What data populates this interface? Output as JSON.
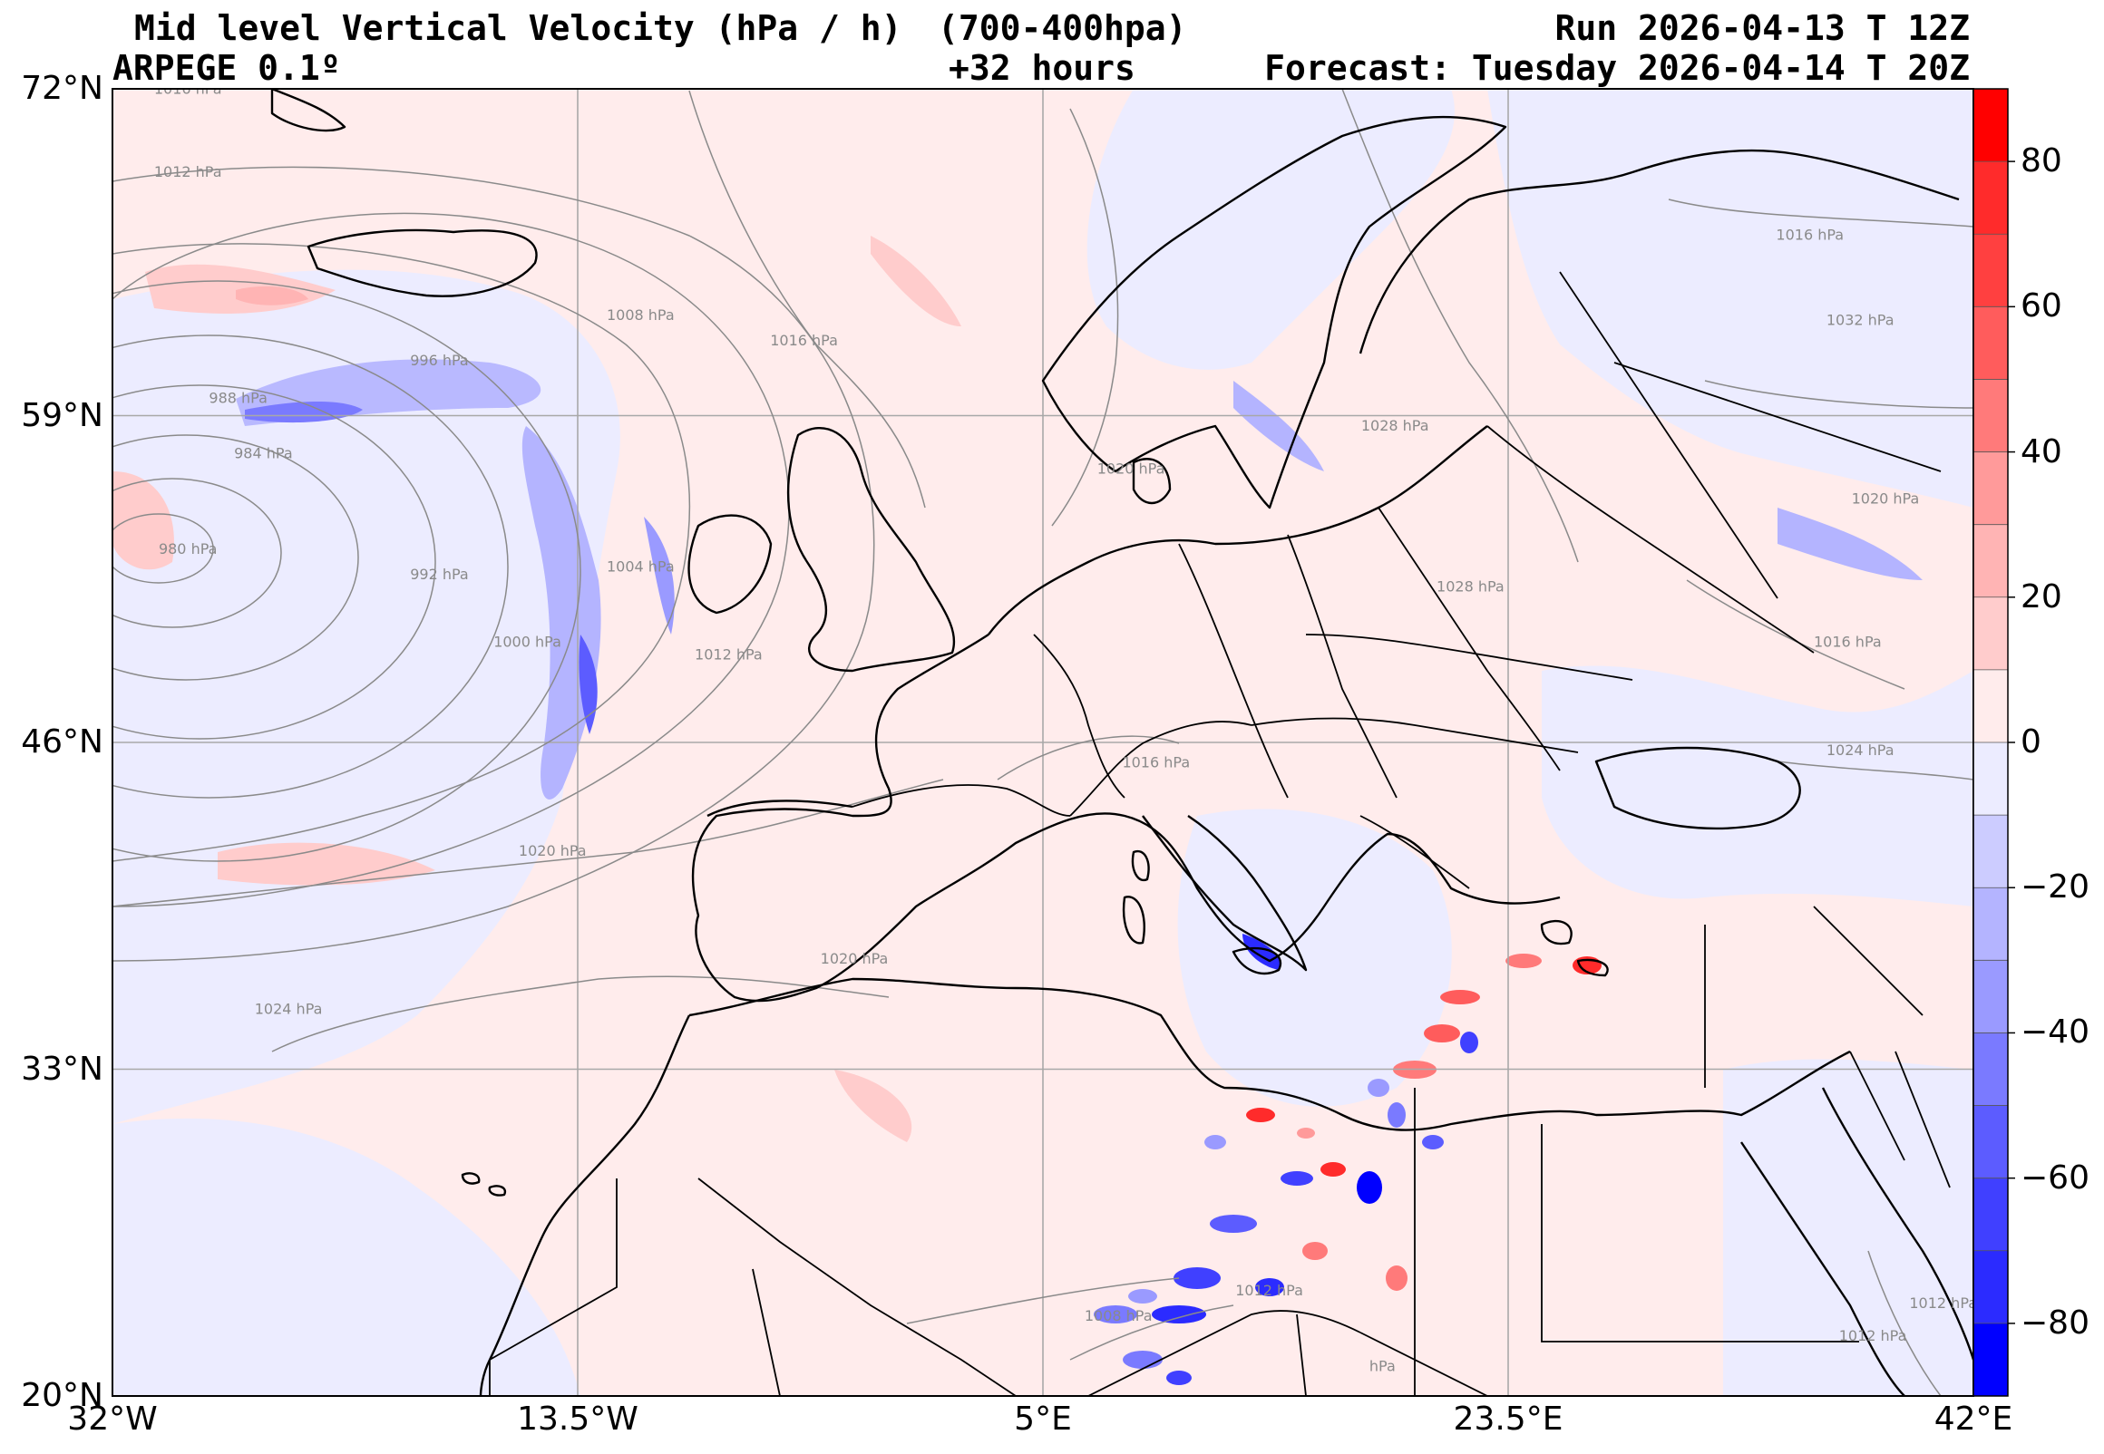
{
  "header": {
    "title": "Mid level Vertical Velocity (hPa / h)",
    "levels": "(700-400hpa)",
    "run": "Run 2026-04-13 T 12Z",
    "model": "ARPEGE 0.1º",
    "lead": "+32 hours",
    "forecast": "Forecast: Tuesday 2026-04-14 T 20Z"
  },
  "map": {
    "lon_range": [
      -32,
      42
    ],
    "lat_range": [
      20,
      72
    ],
    "lon_ticks": [
      {
        "value": -32,
        "label": "32°W"
      },
      {
        "value": -13.5,
        "label": "13.5°W"
      },
      {
        "value": 5,
        "label": "5°E"
      },
      {
        "value": 23.5,
        "label": "23.5°E"
      },
      {
        "value": 42,
        "label": "42°E"
      }
    ],
    "lat_ticks": [
      {
        "value": 72,
        "label": "72°N"
      },
      {
        "value": 59,
        "label": "59°N"
      },
      {
        "value": 46,
        "label": "46°N"
      },
      {
        "value": 33,
        "label": "33°N"
      },
      {
        "value": 20,
        "label": "20°N"
      }
    ],
    "grid": true,
    "pressure_labels": [
      {
        "text": "1016 hPa",
        "lon": -29,
        "lat": 71.8
      },
      {
        "text": "1012 hPa",
        "lon": -29,
        "lat": 68.5
      },
      {
        "text": "1008 hPa",
        "lon": -11,
        "lat": 62.8
      },
      {
        "text": "1016 hPa",
        "lon": -4.5,
        "lat": 61.8
      },
      {
        "text": "996 hPa",
        "lon": -19,
        "lat": 61.0
      },
      {
        "text": "988 hPa",
        "lon": -27,
        "lat": 59.5
      },
      {
        "text": "984 hPa",
        "lon": -26,
        "lat": 57.3
      },
      {
        "text": "980 hPa",
        "lon": -29,
        "lat": 53.5
      },
      {
        "text": "992 hPa",
        "lon": -19,
        "lat": 52.5
      },
      {
        "text": "1000 hPa",
        "lon": -15.5,
        "lat": 49.8
      },
      {
        "text": "1004 hPa",
        "lon": -11,
        "lat": 52.8
      },
      {
        "text": "1012 hPa",
        "lon": -7.5,
        "lat": 49.3
      },
      {
        "text": "1020 hPa",
        "lon": -14.5,
        "lat": 41.5
      },
      {
        "text": "1024 hPa",
        "lon": -25,
        "lat": 35.2
      },
      {
        "text": "1020 hPa",
        "lon": -2.5,
        "lat": 37.2
      },
      {
        "text": "1016 hPa",
        "lon": 9.5,
        "lat": 45.0
      },
      {
        "text": "1020 hPa",
        "lon": 8.5,
        "lat": 56.7
      },
      {
        "text": "1028 hPa",
        "lon": 19,
        "lat": 58.4
      },
      {
        "text": "1028 hPa",
        "lon": 22,
        "lat": 52.0
      },
      {
        "text": "1016 hPa",
        "lon": 35.5,
        "lat": 66.0
      },
      {
        "text": "1032 hPa",
        "lon": 37.5,
        "lat": 62.6
      },
      {
        "text": "1020 hPa",
        "lon": 38.5,
        "lat": 55.5
      },
      {
        "text": "1016 hPa",
        "lon": 37,
        "lat": 49.8
      },
      {
        "text": "1024 hPa",
        "lon": 37.5,
        "lat": 45.5
      },
      {
        "text": "1012 hPa",
        "lon": 14,
        "lat": 24.0
      },
      {
        "text": "1008 hPa",
        "lon": 8,
        "lat": 23.0
      },
      {
        "text": "1012 hPa",
        "lon": 38,
        "lat": 22.2
      },
      {
        "text": "1012 hPa",
        "lon": 40.8,
        "lat": 23.5
      },
      {
        "text": "hPa",
        "lon": 18.5,
        "lat": 21.0
      }
    ]
  },
  "colorbar": {
    "range": [
      -90,
      90
    ],
    "ticks": [
      {
        "value": 80,
        "label": "80"
      },
      {
        "value": 60,
        "label": "60"
      },
      {
        "value": 40,
        "label": "40"
      },
      {
        "value": 20,
        "label": "20"
      },
      {
        "value": 0,
        "label": "0"
      },
      {
        "value": -20,
        "label": "−20"
      },
      {
        "value": -40,
        "label": "−40"
      },
      {
        "value": -60,
        "label": "−60"
      },
      {
        "value": -80,
        "label": "−80"
      }
    ],
    "bins": [
      {
        "from": 80,
        "to": 90,
        "color": "#ff0000"
      },
      {
        "from": 70,
        "to": 80,
        "color": "#ff2b2b"
      },
      {
        "from": 60,
        "to": 70,
        "color": "#ff4040"
      },
      {
        "from": 50,
        "to": 60,
        "color": "#ff5c5c"
      },
      {
        "from": 40,
        "to": 50,
        "color": "#ff7a7a"
      },
      {
        "from": 30,
        "to": 40,
        "color": "#ff9a9a"
      },
      {
        "from": 20,
        "to": 30,
        "color": "#ffb4b4"
      },
      {
        "from": 10,
        "to": 20,
        "color": "#ffcccc"
      },
      {
        "from": 0,
        "to": 10,
        "color": "#ffecec"
      },
      {
        "from": -10,
        "to": 0,
        "color": "#ececff"
      },
      {
        "from": -20,
        "to": -10,
        "color": "#ccccff"
      },
      {
        "from": -30,
        "to": -20,
        "color": "#b4b4ff"
      },
      {
        "from": -40,
        "to": -30,
        "color": "#9a9aff"
      },
      {
        "from": -50,
        "to": -40,
        "color": "#7a7aff"
      },
      {
        "from": -60,
        "to": -50,
        "color": "#5c5cff"
      },
      {
        "from": -70,
        "to": -60,
        "color": "#4040ff"
      },
      {
        "from": -80,
        "to": -70,
        "color": "#2b2bff"
      },
      {
        "from": -90,
        "to": -80,
        "color": "#0000ff"
      }
    ]
  },
  "colors": {
    "sinking": "#ffecec",
    "rising": "#ececff",
    "coast": "#000000",
    "isobar": "#8a8a8a",
    "gridline": "#a8a8a8"
  }
}
